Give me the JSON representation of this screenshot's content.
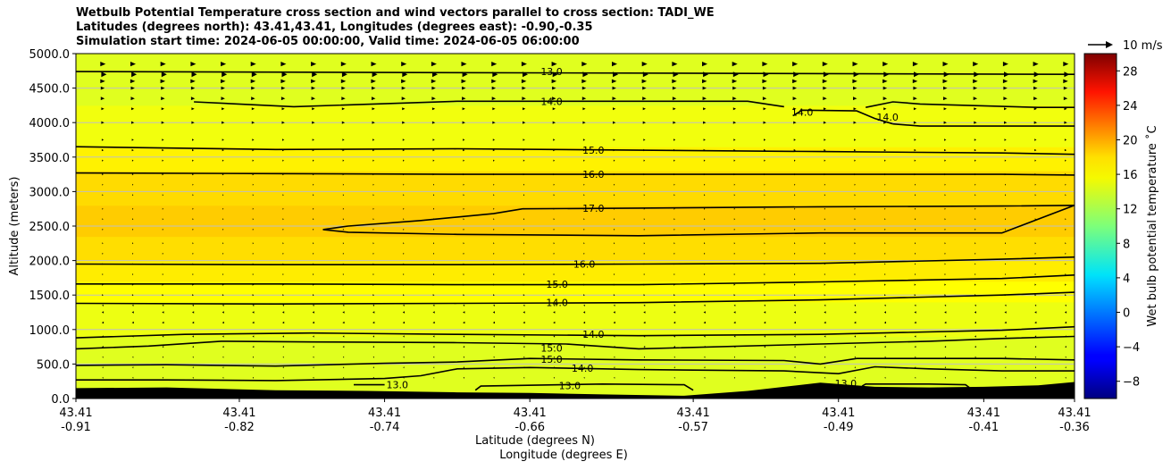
{
  "chart_data": {
    "type": "contour",
    "title": [
      "Wetbulb Potential Temperature cross section and wind vectors parallel to cross section: TADI_WE",
      "Latitudes (degrees north): 43.41,43.41, Longitudes (degrees east): -0.90,-0.35",
      "Simulation start time: 2024-06-05 00:00:00, Valid time: 2024-06-05 06:00:00"
    ],
    "xlabel": "Latitude (degrees N)",
    "xlabel2": "Longitude (degrees E)",
    "ylabel": "Altitude (meters)",
    "colorbar_label": "Wet bulb potential temperature $^\\circ$C",
    "colorbar_label_display": "Wet bulb potential temperature ˚C",
    "colormap": "jet",
    "colorbar_range": [
      -10,
      30
    ],
    "colorbar_ticks": [
      "−8",
      "−4",
      "0",
      "4",
      "8",
      "12",
      "16",
      "20",
      "24",
      "28"
    ],
    "colorbar_tick_values": [
      -8,
      -4,
      0,
      4,
      8,
      12,
      16,
      20,
      24,
      28
    ],
    "quiver_key": "10 m/s",
    "xlim": [
      -0.91,
      -0.36
    ],
    "ylim": [
      0,
      5000
    ],
    "x_ticks": [
      {
        "lon": -0.91,
        "lat_label": "43.41",
        "lon_label": "-0.91"
      },
      {
        "lon": -0.82,
        "lat_label": "43.41",
        "lon_label": "-0.82"
      },
      {
        "lon": -0.74,
        "lat_label": "43.41",
        "lon_label": "-0.74"
      },
      {
        "lon": -0.66,
        "lat_label": "43.41",
        "lon_label": "-0.66"
      },
      {
        "lon": -0.57,
        "lat_label": "43.41",
        "lon_label": "-0.57"
      },
      {
        "lon": -0.49,
        "lat_label": "43.41",
        "lon_label": "-0.49"
      },
      {
        "lon": -0.41,
        "lat_label": "43.41",
        "lon_label": "-0.41"
      },
      {
        "lon": -0.36,
        "lat_label": "43.41",
        "lon_label": "-0.36"
      }
    ],
    "y_ticks": [
      "0.0",
      "500.0",
      "1000.0",
      "1500.0",
      "2000.0",
      "2500.0",
      "3000.0",
      "3500.0",
      "4000.0",
      "4500.0",
      "5000.0"
    ],
    "y_tick_values": [
      0,
      500,
      1000,
      1500,
      2000,
      2500,
      3000,
      3500,
      4000,
      4500,
      5000
    ],
    "grid": "horizontal",
    "terrain": {
      "lon": [
        -0.91,
        -0.86,
        -0.8,
        -0.75,
        -0.7,
        -0.66,
        -0.62,
        -0.575,
        -0.54,
        -0.5,
        -0.47,
        -0.44,
        -0.41,
        -0.38,
        -0.36
      ],
      "alt": [
        150,
        160,
        120,
        110,
        90,
        80,
        60,
        40,
        110,
        230,
        170,
        160,
        170,
        190,
        240
      ]
    },
    "field_bands": [
      {
        "alt_bottom": 0,
        "alt_top": 900,
        "temp": 13.8
      },
      {
        "alt_bottom": 900,
        "alt_top": 1400,
        "temp": 14.3
      },
      {
        "alt_bottom": 1400,
        "alt_top": 1700,
        "temp": 15.0
      },
      {
        "alt_bottom": 1700,
        "alt_top": 2000,
        "temp": 15.7
      },
      {
        "alt_bottom": 2000,
        "alt_top": 2350,
        "temp": 16.3
      },
      {
        "alt_bottom": 2350,
        "alt_top": 2800,
        "temp": 17.0
      },
      {
        "alt_bottom": 2800,
        "alt_top": 3300,
        "temp": 16.4
      },
      {
        "alt_bottom": 3300,
        "alt_top": 3650,
        "temp": 15.5
      },
      {
        "alt_bottom": 3650,
        "alt_top": 4250,
        "temp": 14.5
      },
      {
        "alt_bottom": 4250,
        "alt_top": 5000,
        "temp": 13.8
      }
    ],
    "contours": [
      {
        "label": "13.0",
        "lon": [
          -0.91,
          -0.36
        ],
        "alt": [
          4740,
          4700
        ],
        "label_at": [
          -0.648,
          4740
        ]
      },
      {
        "label": "14.0",
        "lon": [
          -0.845,
          -0.79,
          -0.7,
          -0.62,
          -0.54,
          -0.52
        ],
        "alt": [
          4300,
          4230,
          4310,
          4310,
          4310,
          4230
        ],
        "label_at": [
          -0.648,
          4310
        ]
      },
      {
        "label": "14.0",
        "lon": [
          -0.475,
          -0.46,
          -0.445,
          -0.38,
          -0.36
        ],
        "alt": [
          4220,
          4300,
          4270,
          4220,
          4220
        ]
      },
      {
        "label": "14.0",
        "lon": [
          -0.515,
          -0.51,
          -0.48,
          -0.47,
          -0.46
        ],
        "alt": [
          4100,
          4180,
          4170,
          4060,
          3980
        ],
        "label_at": [
          -0.51,
          4150
        ]
      },
      {
        "label": "14.0",
        "lon": [
          -0.46,
          -0.445,
          -0.38,
          -0.36
        ],
        "alt": [
          3980,
          3950,
          3950,
          3950
        ],
        "label_at": [
          -0.463,
          4080
        ]
      },
      {
        "label": "15.0",
        "lon": [
          -0.91,
          -0.8,
          -0.7,
          -0.6,
          -0.5,
          -0.4,
          -0.36
        ],
        "alt": [
          3650,
          3610,
          3620,
          3600,
          3580,
          3560,
          3540
        ],
        "label_at": [
          -0.625,
          3600
        ]
      },
      {
        "label": "16.0",
        "lon": [
          -0.91,
          -0.8,
          -0.7,
          -0.6,
          -0.5,
          -0.4,
          -0.36
        ],
        "alt": [
          3270,
          3260,
          3250,
          3250,
          3250,
          3250,
          3240
        ],
        "label_at": [
          -0.625,
          3250
        ]
      },
      {
        "label": "17.0",
        "lon": [
          -0.774,
          -0.76,
          -0.72,
          -0.68,
          -0.664,
          -0.6,
          -0.5,
          -0.4,
          -0.36,
          -0.4,
          -0.5,
          -0.6,
          -0.7,
          -0.76,
          -0.774
        ],
        "alt": [
          2450,
          2500,
          2580,
          2680,
          2750,
          2760,
          2780,
          2790,
          2800,
          2400,
          2400,
          2360,
          2380,
          2410,
          2450
        ],
        "label_at": [
          -0.625,
          2760
        ]
      },
      {
        "label": "16.0",
        "lon": [
          -0.91,
          -0.8,
          -0.7,
          -0.6,
          -0.5,
          -0.4,
          -0.36
        ],
        "alt": [
          1950,
          1940,
          1940,
          1950,
          1960,
          2020,
          2050
        ],
        "label_at": [
          -0.63,
          1950
        ]
      },
      {
        "label": "15.0",
        "lon": [
          -0.91,
          -0.8,
          -0.7,
          -0.6,
          -0.5,
          -0.4,
          -0.36
        ],
        "alt": [
          1660,
          1660,
          1650,
          1650,
          1690,
          1740,
          1790
        ],
        "label_at": [
          -0.645,
          1660
        ]
      },
      {
        "label": "14.0",
        "lon": [
          -0.91,
          -0.8,
          -0.7,
          -0.6,
          -0.5,
          -0.4,
          -0.36
        ],
        "alt": [
          1380,
          1370,
          1380,
          1390,
          1430,
          1500,
          1540
        ],
        "label_at": [
          -0.645,
          1390
        ]
      },
      {
        "label": "14.0",
        "lon": [
          -0.91,
          -0.85,
          -0.78,
          -0.7,
          -0.6,
          -0.5,
          -0.4,
          -0.36
        ],
        "alt": [
          880,
          930,
          950,
          930,
          910,
          930,
          990,
          1040
        ],
        "label_at": [
          -0.625,
          930
        ]
      },
      {
        "label": "15.0",
        "lon": [
          -0.91,
          -0.87,
          -0.83,
          -0.78,
          -0.7,
          -0.64,
          -0.6,
          -0.5,
          -0.44,
          -0.4,
          -0.36
        ],
        "alt": [
          720,
          760,
          830,
          820,
          810,
          790,
          720,
          790,
          830,
          870,
          900
        ],
        "label_at": [
          -0.648,
          730
        ]
      },
      {
        "label": "15.0",
        "lon": [
          -0.91,
          -0.86,
          -0.8,
          -0.74,
          -0.7,
          -0.66,
          -0.6,
          -0.52,
          -0.5,
          -0.48,
          -0.44,
          -0.4,
          -0.36
        ],
        "alt": [
          480,
          490,
          470,
          510,
          530,
          580,
          560,
          550,
          500,
          580,
          580,
          580,
          560
        ],
        "label_at": [
          -0.648,
          570
        ]
      },
      {
        "label": "14.0",
        "lon": [
          -0.91,
          -0.86,
          -0.8,
          -0.74,
          -0.72,
          -0.7,
          -0.66,
          -0.6,
          -0.52,
          -0.49,
          -0.47,
          -0.44,
          -0.4,
          -0.36
        ],
        "alt": [
          270,
          270,
          260,
          290,
          330,
          430,
          450,
          420,
          400,
          360,
          460,
          430,
          400,
          400
        ],
        "label_at": [
          -0.631,
          440
        ]
      },
      {
        "label": "13.0",
        "lon": [
          -0.757,
          -0.74
        ],
        "alt": [
          200,
          200
        ],
        "label_at": [
          -0.733,
          200
        ]
      },
      {
        "label": "13.0",
        "lon": [
          -0.69,
          -0.687,
          -0.62,
          -0.575,
          -0.57
        ],
        "alt": [
          120,
          180,
          210,
          200,
          120
        ],
        "label_at": [
          -0.638,
          190
        ]
      },
      {
        "label": "13.0",
        "lon": [
          -0.477,
          -0.475,
          -0.44,
          -0.42,
          -0.418
        ],
        "alt": [
          180,
          210,
          210,
          200,
          160
        ],
        "label_at": [
          -0.486,
          220
        ]
      }
    ],
    "wind_rows": [
      {
        "alt": 4850,
        "u": 6,
        "w": 0
      },
      {
        "alt": 4700,
        "u": 8,
        "w": 0
      },
      {
        "alt": 4600,
        "u": 5,
        "w": 0
      },
      {
        "alt": 4500,
        "u": 4,
        "w": 0
      },
      {
        "alt": 4350,
        "u": 4,
        "w": 0
      },
      {
        "alt": 4200,
        "u": 3,
        "w": 0
      },
      {
        "alt": 4000,
        "u": 3,
        "w": 0
      },
      {
        "alt": 3750,
        "u": 2,
        "w": 0
      },
      {
        "alt": 3600,
        "u": 2,
        "w": 0
      },
      {
        "alt": 3450,
        "u": 1.5,
        "w": 0
      },
      {
        "alt": 3250,
        "u": 1.5,
        "w": 0
      },
      {
        "alt": 3100,
        "u": 1,
        "w": 0
      },
      {
        "alt": 2950,
        "u": 1,
        "w": 0
      },
      {
        "alt": 2750,
        "u": 0.5,
        "w": 0
      },
      {
        "alt": 2600,
        "u": 0.5,
        "w": 0
      },
      {
        "alt": 2450,
        "u": 0.5,
        "w": 0
      },
      {
        "alt": 2250,
        "u": 0.5,
        "w": 0
      },
      {
        "alt": 2100,
        "u": 0.5,
        "w": 0
      },
      {
        "alt": 1950,
        "u": 1,
        "w": 0
      },
      {
        "alt": 1800,
        "u": 1,
        "w": 0
      },
      {
        "alt": 1650,
        "u": 1.5,
        "w": 0
      },
      {
        "alt": 1500,
        "u": 1.5,
        "w": 0
      },
      {
        "alt": 1350,
        "u": -1.5,
        "w": 0
      },
      {
        "alt": 1250,
        "u": -2,
        "w": 0
      },
      {
        "alt": 1100,
        "u": -2,
        "w": 0
      },
      {
        "alt": 900,
        "u": -1.5,
        "w": 0
      },
      {
        "alt": 750,
        "u": -1.5,
        "w": 0
      },
      {
        "alt": 600,
        "u": -1,
        "w": 0
      },
      {
        "alt": 450,
        "u": -1,
        "w": 0
      },
      {
        "alt": 300,
        "u": -1,
        "w": 0
      }
    ]
  },
  "colors": {
    "background": "#ffffff",
    "terrain": "#000000",
    "contour": "#000000",
    "gridline": "#bfbfbf"
  }
}
